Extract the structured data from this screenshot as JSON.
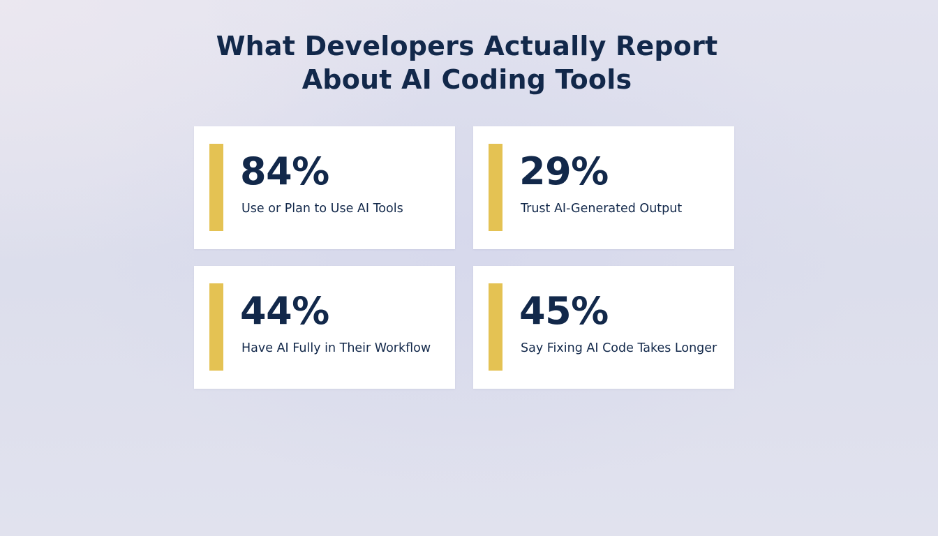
{
  "title": {
    "line1": "What Developers Actually Report",
    "line2": "About AI Coding Tools"
  },
  "colors": {
    "accent": "#e4c253",
    "text": "#12284a",
    "card": "#ffffff"
  },
  "stats": [
    {
      "value": "84%",
      "label": "Use or Plan to Use AI Tools"
    },
    {
      "value": "29%",
      "label": "Trust AI-Generated Output"
    },
    {
      "value": "44%",
      "label": "Have AI Fully in Their Workflow"
    },
    {
      "value": "45%",
      "label": "Say Fixing AI Code Takes Longer"
    }
  ]
}
